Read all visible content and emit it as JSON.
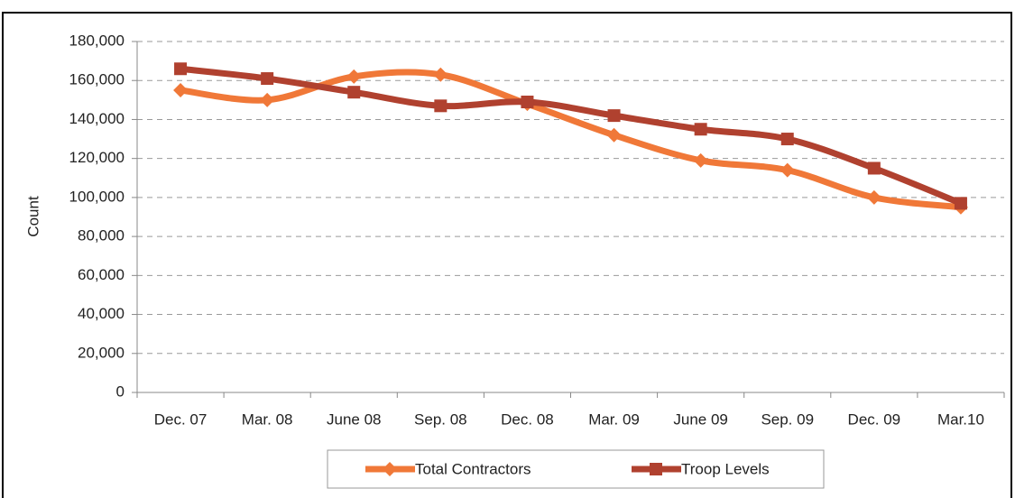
{
  "chart_data": {
    "type": "line",
    "y_label": "Count",
    "categories": [
      "Dec. 07",
      "Mar. 08",
      "June 08",
      "Sep. 08",
      "Dec. 08",
      "Mar. 09",
      "June 09",
      "Sep. 09",
      "Dec. 09",
      "Mar.10"
    ],
    "series": [
      {
        "name": "Total Contractors",
        "color": "#f07838",
        "marker": "diamond",
        "values": [
          155000,
          150000,
          162000,
          163000,
          148000,
          132000,
          119000,
          114000,
          100000,
          95000
        ]
      },
      {
        "name": "Troop Levels",
        "color": "#b0412f",
        "marker": "square",
        "values": [
          166000,
          161000,
          154000,
          147000,
          149000,
          142000,
          135000,
          130000,
          115000,
          97000
        ]
      }
    ],
    "ylim": [
      0,
      180000
    ],
    "yticks": [
      0,
      {
        "value": 20000,
        "label": "20,000"
      },
      {
        "value": 40000,
        "label": "40,000"
      },
      {
        "value": 60000,
        "label": "60,000"
      },
      {
        "value": 80000,
        "label": "80,000"
      },
      {
        "value": 100000,
        "label": "100,000"
      },
      {
        "value": 120000,
        "label": "120,000"
      },
      {
        "value": 140000,
        "label": "140,000"
      },
      {
        "value": 160000,
        "label": "160,000"
      },
      {
        "value": 180000,
        "label": "180,000"
      }
    ],
    "grid": true,
    "legend": "bottom"
  }
}
